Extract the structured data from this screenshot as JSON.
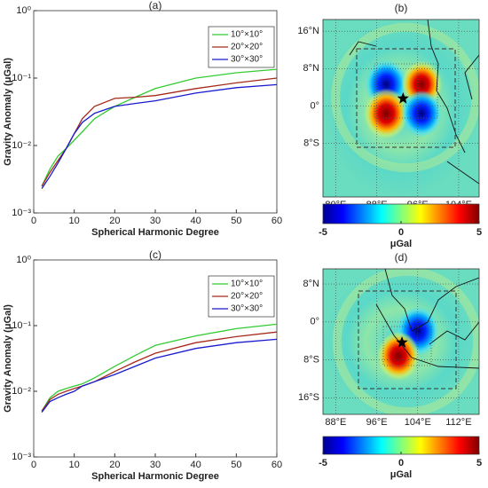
{
  "chart_data": [
    {
      "type": "line",
      "title": "(a)",
      "xlabel": "Spherical Harmonic Degree",
      "ylabel": "Gravity Anomaly (μGal)",
      "log_y": true,
      "x": [
        2,
        4,
        6,
        8,
        10,
        12,
        15,
        20,
        25,
        30,
        40,
        50,
        60
      ],
      "series": [
        {
          "name": "10°×10°",
          "color": "#33cc33",
          "values": [
            0.0025,
            0.0045,
            0.007,
            0.009,
            0.012,
            0.016,
            0.025,
            0.038,
            0.052,
            0.07,
            0.1,
            0.12,
            0.135
          ]
        },
        {
          "name": "20°×20°",
          "color": "#a52a1a",
          "values": [
            0.0025,
            0.004,
            0.006,
            0.009,
            0.015,
            0.025,
            0.038,
            0.05,
            0.052,
            0.055,
            0.07,
            0.085,
            0.1
          ]
        },
        {
          "name": "30°×30°",
          "color": "#1a1acc",
          "values": [
            0.0023,
            0.0035,
            0.0055,
            0.009,
            0.015,
            0.022,
            0.03,
            0.038,
            0.042,
            0.046,
            0.06,
            0.072,
            0.08
          ]
        }
      ],
      "xlim": [
        0,
        60
      ],
      "xticks": [
        0,
        10,
        20,
        30,
        40,
        50,
        60
      ],
      "ylim": [
        0.001,
        1
      ],
      "yticks": [
        {
          "value": 1,
          "label": "10⁰"
        },
        {
          "value": 0.1,
          "label": "10⁻¹"
        },
        {
          "value": 0.01,
          "label": "10⁻²"
        },
        {
          "value": 0.001,
          "label": "10⁻³"
        }
      ],
      "legend": "upper right"
    },
    {
      "type": "map",
      "title": "(b)",
      "xlim": [
        77.5,
        108
      ],
      "ylim": [
        -19.5,
        18.5
      ],
      "xticks": [
        {
          "value": 80,
          "label": "80°E"
        },
        {
          "value": 88,
          "label": "88°E"
        },
        {
          "value": 96,
          "label": "96°E"
        },
        {
          "value": 104,
          "label": "104°E"
        }
      ],
      "yticks": [
        {
          "value": 16,
          "label": "16°N"
        },
        {
          "value": 8,
          "label": "8°N"
        },
        {
          "value": 0,
          "label": "0°"
        },
        {
          "value": -8,
          "label": "8°S"
        }
      ],
      "pattern": "quadrant",
      "colorbar": {
        "lim": [
          -5,
          5
        ],
        "ticks": [
          -5,
          0,
          5
        ],
        "label": "μGal"
      }
    },
    {
      "type": "line",
      "title": "(c)",
      "xlabel": "Spherical Harmonic Degree",
      "ylabel": "Gravity Anomaly (μGal)",
      "log_y": true,
      "x": [
        2,
        4,
        6,
        8,
        10,
        12,
        15,
        20,
        25,
        30,
        40,
        50,
        60
      ],
      "series": [
        {
          "name": "10°×10°",
          "color": "#33cc33",
          "values": [
            0.005,
            0.008,
            0.01,
            0.011,
            0.012,
            0.013,
            0.016,
            0.024,
            0.035,
            0.05,
            0.07,
            0.09,
            0.105
          ]
        },
        {
          "name": "20°×20°",
          "color": "#a52a1a",
          "values": [
            0.005,
            0.0075,
            0.009,
            0.01,
            0.011,
            0.012,
            0.014,
            0.02,
            0.028,
            0.038,
            0.055,
            0.068,
            0.08
          ]
        },
        {
          "name": "30°×30°",
          "color": "#1a1acc",
          "values": [
            0.0048,
            0.007,
            0.008,
            0.009,
            0.01,
            0.012,
            0.014,
            0.018,
            0.024,
            0.032,
            0.045,
            0.055,
            0.062
          ]
        }
      ],
      "xlim": [
        0,
        60
      ],
      "xticks": [
        0,
        10,
        20,
        30,
        40,
        50,
        60
      ],
      "ylim": [
        0.001,
        1
      ],
      "yticks": [
        {
          "value": 1,
          "label": "10⁰"
        },
        {
          "value": 0.1,
          "label": "10⁻¹"
        },
        {
          "value": 0.01,
          "label": "10⁻²"
        },
        {
          "value": 0.001,
          "label": "10⁻³"
        }
      ],
      "legend": "upper right"
    },
    {
      "type": "map",
      "title": "(d)",
      "xlim": [
        85.5,
        116
      ],
      "ylim": [
        -19.5,
        11.2
      ],
      "xticks": [
        {
          "value": 88,
          "label": "88°E"
        },
        {
          "value": 96,
          "label": "96°E"
        },
        {
          "value": 104,
          "label": "104°E"
        },
        {
          "value": 112,
          "label": "112°E"
        }
      ],
      "yticks": [
        {
          "value": 8,
          "label": "8°N"
        },
        {
          "value": 0,
          "label": "0°"
        },
        {
          "value": -8,
          "label": "8°S"
        },
        {
          "value": -16,
          "label": "16°S"
        }
      ],
      "pattern": "dipole",
      "colorbar": {
        "lim": [
          -5,
          5
        ],
        "ticks": [
          -5,
          0,
          5
        ],
        "label": "μGal"
      }
    }
  ]
}
